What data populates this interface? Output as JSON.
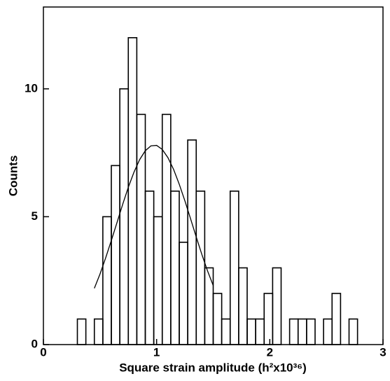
{
  "chart_data": {
    "type": "histogram",
    "xlabel": "Square strain amplitude (h²x10³⁶)",
    "ylabel": "Counts",
    "bins": [
      0.3,
      0.375,
      0.45,
      0.525,
      0.6,
      0.675,
      0.75,
      0.825,
      0.9,
      0.975,
      1.05,
      1.125,
      1.2,
      1.275,
      1.35,
      1.425,
      1.5,
      1.575,
      1.65,
      1.725,
      1.8,
      1.875,
      1.95,
      2.025,
      2.1,
      2.175,
      2.25,
      2.325,
      2.4,
      2.475,
      2.55,
      2.625,
      2.7,
      2.775
    ],
    "counts": [
      1,
      0,
      1,
      5,
      7,
      10,
      12,
      9,
      6,
      5,
      9,
      6,
      4,
      8,
      6,
      3,
      2,
      1,
      6,
      3,
      1,
      1,
      2,
      3,
      0,
      1,
      1,
      1,
      0,
      1,
      2,
      0,
      1
    ],
    "color": "#000000",
    "curve": {
      "x": [
        0.45,
        0.5,
        0.55,
        0.6,
        0.65,
        0.7,
        0.75,
        0.8,
        0.85,
        0.9,
        0.95,
        1.0,
        1.05,
        1.1,
        1.15,
        1.2,
        1.25,
        1.3,
        1.35,
        1.4,
        1.45,
        1.5
      ],
      "y": [
        2.2,
        2.76,
        3.39,
        4.07,
        4.77,
        5.48,
        6.15,
        6.74,
        7.23,
        7.58,
        7.77,
        7.79,
        7.63,
        7.31,
        6.85,
        6.27,
        5.62,
        4.92,
        4.21,
        3.52,
        2.88,
        2.31
      ]
    },
    "xlim": [
      0,
      3
    ],
    "ylim": [
      0,
      13.2
    ],
    "xticks": [
      0,
      1,
      2,
      3
    ],
    "yticks": [
      0,
      5,
      10
    ]
  }
}
